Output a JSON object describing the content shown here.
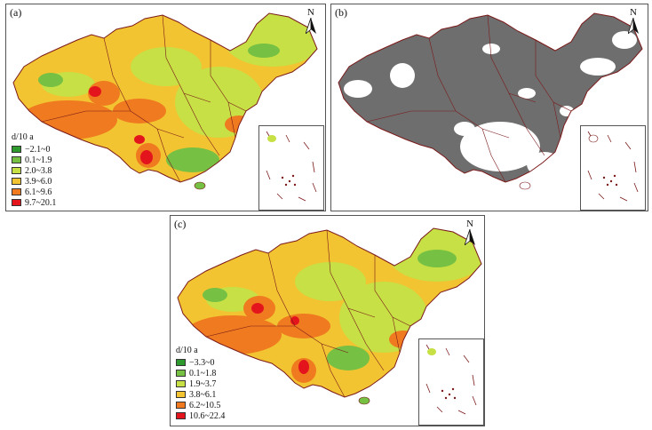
{
  "panels": {
    "a": {
      "label": "(a)",
      "north": "N",
      "legend": {
        "title": "d/10 a",
        "items": [
          {
            "label": "−2.1~0",
            "color": "#2e9a2e"
          },
          {
            "label": "0.1~1.9",
            "color": "#76c043"
          },
          {
            "label": "2.0~3.8",
            "color": "#c6e045"
          },
          {
            "label": "3.9~6.0",
            "color": "#f2c431"
          },
          {
            "label": "6.1~9.6",
            "color": "#ef7a1f"
          },
          {
            "label": "9.7~20.1",
            "color": "#e3141c"
          }
        ]
      }
    },
    "b": {
      "label": "(b)",
      "north": "N",
      "colors": {
        "significant": "#6e6e6e",
        "background": "#ffffff",
        "boundary": "#7b1a1a"
      }
    },
    "c": {
      "label": "(c)",
      "north": "N",
      "legend": {
        "title": "d/10 a",
        "items": [
          {
            "label": "−3.3~0",
            "color": "#2e9a2e"
          },
          {
            "label": "0.1~1.8",
            "color": "#76c043"
          },
          {
            "label": "1.9~3.7",
            "color": "#c6e045"
          },
          {
            "label": "3.8~6.1",
            "color": "#f2c431"
          },
          {
            "label": "6.2~10.5",
            "color": "#ef7a1f"
          },
          {
            "label": "10.6~22.4",
            "color": "#e3141c"
          }
        ]
      }
    }
  }
}
